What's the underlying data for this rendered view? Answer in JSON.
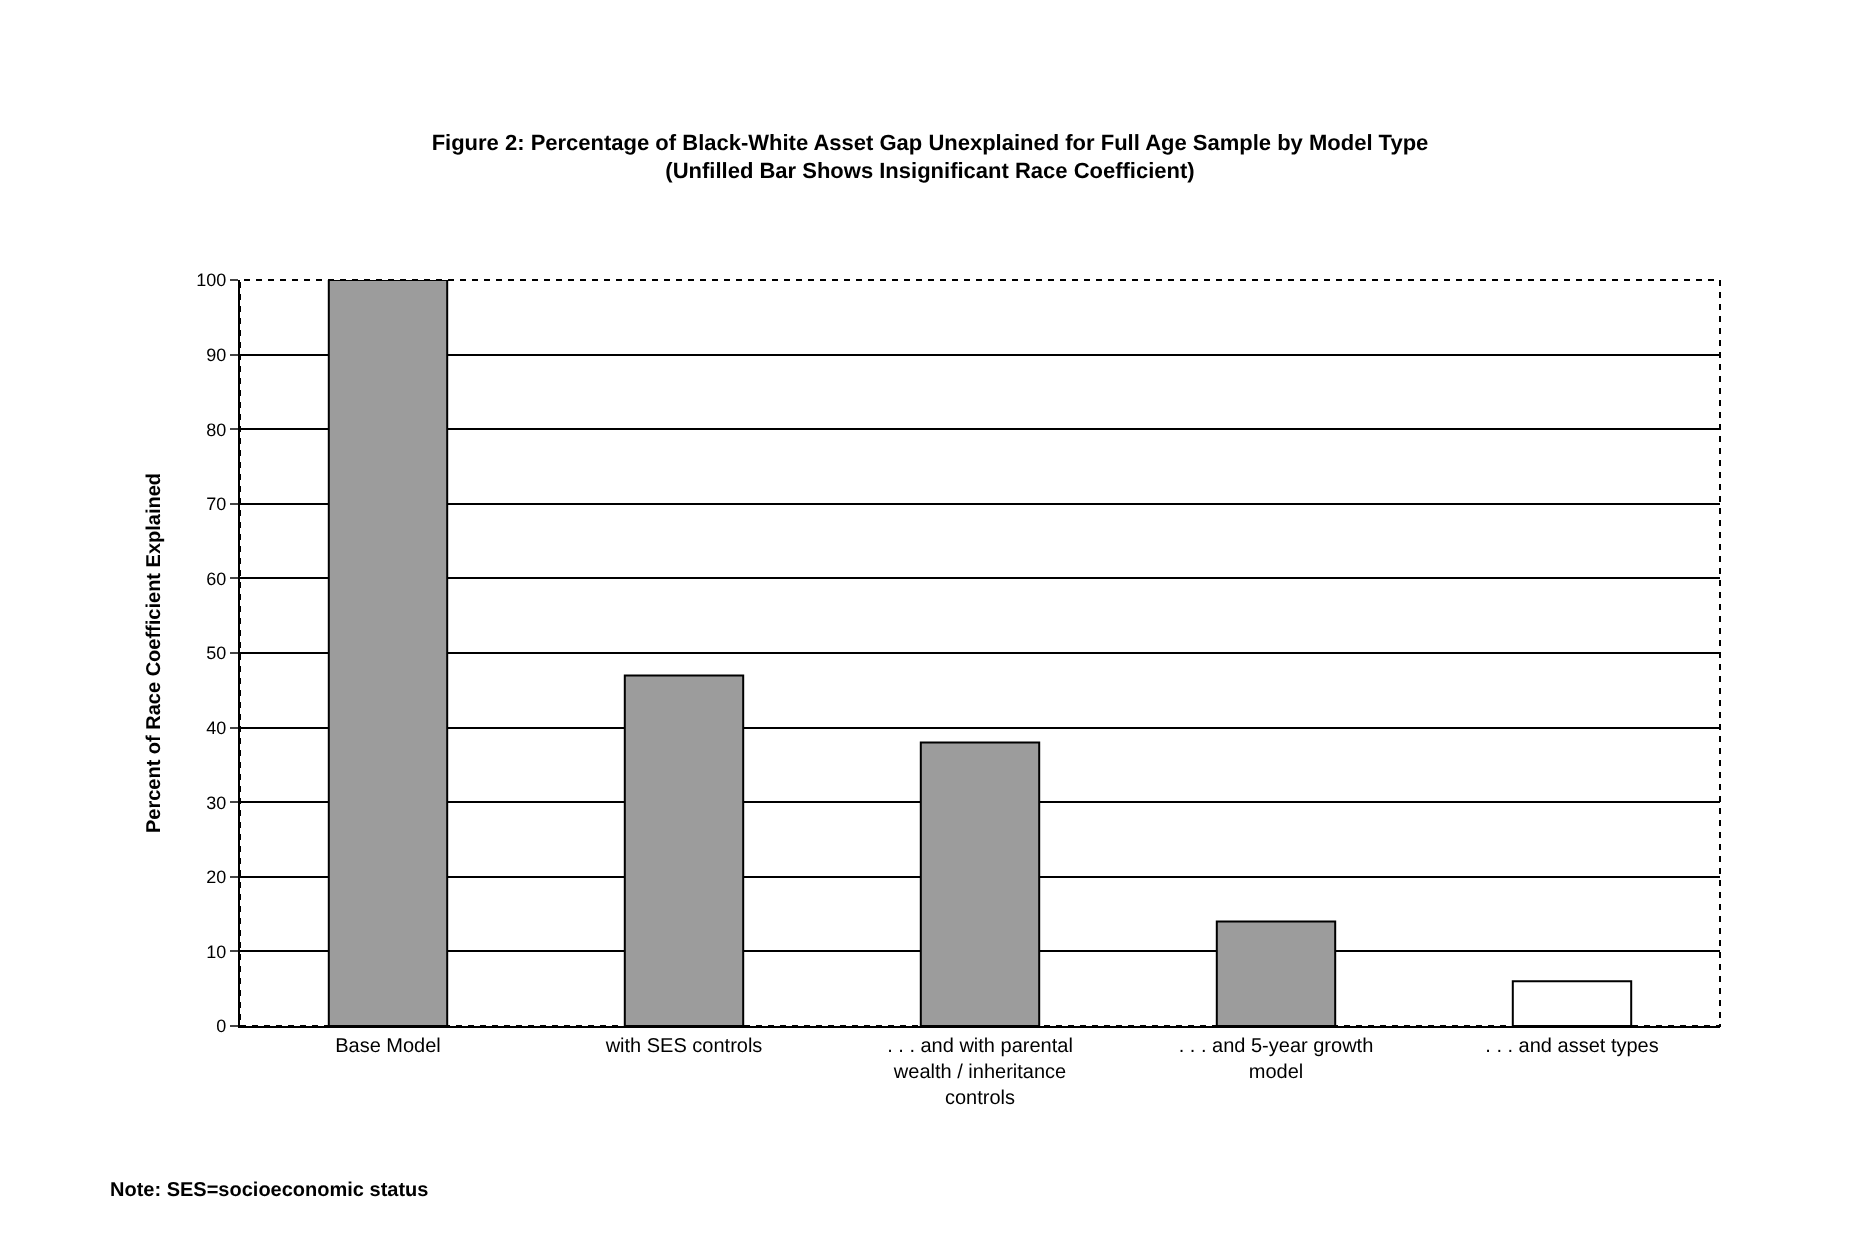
{
  "chart_data": {
    "type": "bar",
    "title": "Figure 2: Percentage of Black-White Asset Gap Unexplained for Full Age Sample by Model Type (Unfilled Bar Shows Insignificant Race Coefficient)",
    "ylabel": "Percent of Race Coefficient Explained",
    "categories": [
      "Base Model",
      "with SES controls",
      ". . . and with parental wealth / inheritance controls",
      ". . . and 5-year growth model",
      ". . . and asset types"
    ],
    "values": [
      100,
      47,
      38,
      14,
      6
    ],
    "colors": [
      "#9c9c9c",
      "#9c9c9c",
      "#9c9c9c",
      "#9c9c9c",
      "#ffffff"
    ],
    "ylim": [
      0,
      100
    ],
    "yticks": [
      0,
      10,
      20,
      30,
      40,
      50,
      60,
      70,
      80,
      90,
      100
    ],
    "grid": "y",
    "annotations": [
      "Note: SES=socioeconomic status"
    ]
  }
}
